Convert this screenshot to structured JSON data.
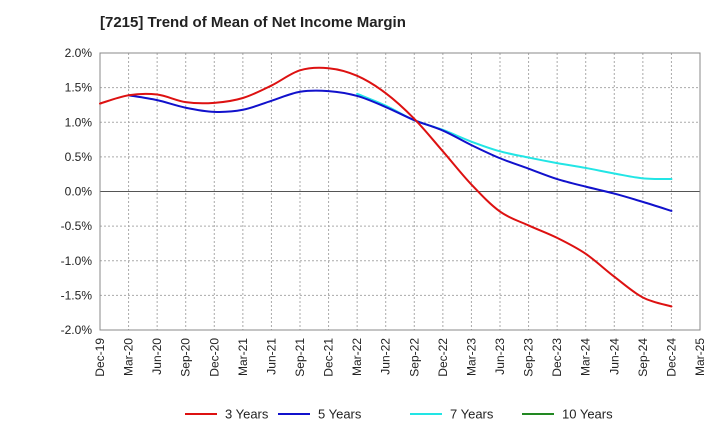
{
  "chart_data": {
    "type": "line",
    "title": "[7215]  Trend of Mean of Net Income Margin",
    "xlabel": "",
    "ylabel": "",
    "ylim": [
      -2.0,
      2.0
    ],
    "y_ticks": [
      "2.0%",
      "1.5%",
      "1.0%",
      "0.5%",
      "0.0%",
      "-0.5%",
      "-1.0%",
      "-1.5%",
      "-2.0%"
    ],
    "y_tick_values": [
      2.0,
      1.5,
      1.0,
      0.5,
      0.0,
      -0.5,
      -1.0,
      -1.5,
      -2.0
    ],
    "x_ticks": [
      "Dec-19",
      "Mar-20",
      "Jun-20",
      "Sep-20",
      "Dec-20",
      "Mar-21",
      "Jun-21",
      "Sep-21",
      "Dec-21",
      "Mar-22",
      "Jun-22",
      "Sep-22",
      "Dec-22",
      "Mar-23",
      "Jun-23",
      "Sep-23",
      "Dec-23",
      "Mar-24",
      "Jun-24",
      "Sep-24",
      "Dec-24",
      "Mar-25"
    ],
    "grid": true,
    "legend_position": "bottom",
    "series": [
      {
        "name": "3 Years",
        "color": "#dd1111",
        "x": [
          "Dec-19",
          "Mar-20",
          "Jun-20",
          "Sep-20",
          "Dec-20",
          "Mar-21",
          "Jun-21",
          "Sep-21",
          "Dec-21",
          "Mar-22",
          "Jun-22",
          "Sep-22",
          "Dec-22",
          "Mar-23",
          "Jun-23",
          "Sep-23",
          "Dec-23",
          "Mar-24",
          "Jun-24",
          "Sep-24",
          "Dec-24"
        ],
        "values": [
          1.27,
          1.39,
          1.4,
          1.29,
          1.28,
          1.35,
          1.53,
          1.75,
          1.78,
          1.67,
          1.42,
          1.05,
          0.58,
          0.1,
          -0.29,
          -0.49,
          -0.67,
          -0.9,
          -1.23,
          -1.53,
          -1.66
        ]
      },
      {
        "name": "5 Years",
        "color": "#1111cc",
        "x": [
          "Mar-20",
          "Jun-20",
          "Sep-20",
          "Dec-20",
          "Mar-21",
          "Jun-21",
          "Sep-21",
          "Dec-21",
          "Mar-22",
          "Jun-22",
          "Sep-22",
          "Dec-22",
          "Mar-23",
          "Jun-23",
          "Sep-23",
          "Dec-23",
          "Mar-24",
          "Jun-24",
          "Sep-24",
          "Dec-24"
        ],
        "values": [
          1.39,
          1.32,
          1.21,
          1.15,
          1.18,
          1.31,
          1.44,
          1.45,
          1.38,
          1.22,
          1.03,
          0.88,
          0.67,
          0.48,
          0.33,
          0.18,
          0.07,
          -0.03,
          -0.15,
          -0.28
        ]
      },
      {
        "name": "7 Years",
        "color": "#22e5e5",
        "x": [
          "Mar-22",
          "Jun-22",
          "Sep-22",
          "Dec-22",
          "Mar-23",
          "Jun-23",
          "Sep-23",
          "Dec-23",
          "Mar-24",
          "Jun-24",
          "Sep-24",
          "Dec-24"
        ],
        "values": [
          1.41,
          1.24,
          1.03,
          0.89,
          0.72,
          0.58,
          0.49,
          0.41,
          0.34,
          0.26,
          0.19,
          0.18
        ]
      },
      {
        "name": "10 Years",
        "color": "#228822",
        "x": [],
        "values": []
      }
    ]
  }
}
